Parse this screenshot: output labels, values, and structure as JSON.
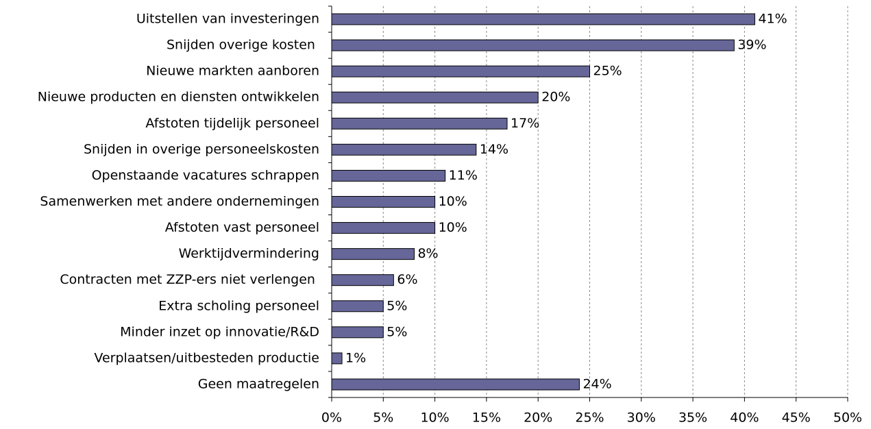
{
  "chart_data": {
    "type": "bar",
    "orientation": "horizontal",
    "categories": [
      "Uitstellen van investeringen",
      "Snijden overige kosten ",
      "Nieuwe markten aanboren",
      "Nieuwe producten en diensten ontwikkelen",
      "Afstoten tijdelijk personeel",
      "Snijden in overige personeelskosten",
      "Openstaande vacatures schrappen",
      "Samenwerken met andere ondernemingen",
      "Afstoten vast personeel",
      "Werktijdvermindering",
      "Contracten met ZZP-ers niet verlengen ",
      "Extra scholing personeel",
      "Minder inzet op innovatie/R&D",
      "Verplaatsen/uitbesteden productie",
      "Geen maatregelen"
    ],
    "values": [
      41,
      39,
      25,
      20,
      17,
      14,
      11,
      10,
      10,
      8,
      6,
      5,
      5,
      1,
      24
    ],
    "value_labels": [
      "41%",
      "39%",
      "25%",
      "20%",
      "17%",
      "14%",
      "11%",
      "10%",
      "10%",
      "8%",
      "6%",
      "5%",
      "5%",
      "1%",
      "24%"
    ],
    "color": "#666699",
    "xlim": [
      0,
      50
    ],
    "xticks": [
      {
        "value": 0,
        "label": "0%"
      },
      {
        "value": 5,
        "label": "5%"
      },
      {
        "value": 10,
        "label": "10%"
      },
      {
        "value": 15,
        "label": "15%"
      },
      {
        "value": 20,
        "label": "20%"
      },
      {
        "value": 25,
        "label": "25%"
      },
      {
        "value": 30,
        "label": "30%"
      },
      {
        "value": 35,
        "label": "35%"
      },
      {
        "value": 40,
        "label": "40%"
      },
      {
        "value": 45,
        "label": "45%"
      },
      {
        "value": 50,
        "label": "50%"
      }
    ],
    "grid": true
  }
}
